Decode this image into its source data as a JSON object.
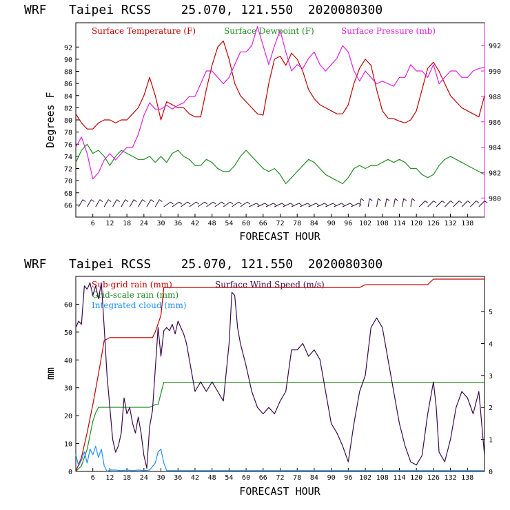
{
  "colors": {
    "temperature": "#c00000",
    "dewpoint": "#228b22",
    "pressure": "#e020e0",
    "subgrid_rain": "#c00000",
    "gridscale_rain": "#228b22",
    "cloud": "#1e90ff",
    "wind": "#3a0a4a",
    "barbs": "#2a0a3a"
  },
  "top_panel": {
    "title": "WRF   Taipei RCSS    25.070, 121.550  2020080300",
    "legend": [
      "Surface Temperature (F)",
      "Surface Dewpoint (F)",
      "Surface Pressure (mb)"
    ]
  },
  "bottom_panel": {
    "title": "WRF   Taipei RCSS    25.070, 121.550  2020080300",
    "legend": [
      "Sub-grid rain (mm)",
      "Grid-scale rain (mm)",
      "Integrated cloud (mm)",
      "Surface Wind Speed (m/s)"
    ]
  },
  "chart_data": [
    {
      "type": "line",
      "xlabel": "FORECAST HOUR",
      "ylabel": "Degrees F",
      "xlim": [
        0,
        144
      ],
      "ylim": [
        64,
        96
      ],
      "y2lim": [
        978.5,
        993.8
      ],
      "xticks": [
        "6",
        "12",
        "18",
        "24",
        "30",
        "36",
        "42",
        "48",
        "54",
        "60",
        "66",
        "72",
        "78",
        "84",
        "90",
        "96",
        "102",
        "108",
        "114",
        "120",
        "126",
        "132",
        "138"
      ],
      "yticks": [
        "66",
        "68",
        "70",
        "72",
        "74",
        "76",
        "78",
        "80",
        "82",
        "84",
        "86",
        "88",
        "90",
        "92"
      ],
      "y2ticks": [
        "980",
        "982",
        "984",
        "986",
        "988",
        "990",
        "992"
      ],
      "series": [
        {
          "name": "Surface Temperature (F)",
          "axis": "left",
          "x": [
            0,
            2,
            4,
            6,
            8,
            10,
            12,
            14,
            16,
            18,
            20,
            22,
            24,
            26,
            28,
            30,
            32,
            34,
            36,
            38,
            40,
            42,
            44,
            46,
            48,
            50,
            52,
            54,
            56,
            58,
            60,
            62,
            64,
            66,
            68,
            70,
            72,
            74,
            76,
            78,
            80,
            82,
            84,
            86,
            88,
            90,
            92,
            94,
            96,
            98,
            100,
            102,
            104,
            106,
            108,
            110,
            112,
            114,
            116,
            118,
            120,
            122,
            124,
            126,
            128,
            130,
            132,
            134,
            136,
            138,
            140,
            142,
            144
          ],
          "y": [
            81,
            79.5,
            78.5,
            78.5,
            79.5,
            80,
            80,
            79.5,
            80,
            80,
            81,
            82,
            84,
            87,
            84,
            80,
            83,
            82.5,
            82,
            82,
            81,
            80.5,
            80.5,
            85,
            89,
            92,
            93,
            90,
            86,
            84,
            83,
            82,
            81,
            80.8,
            86,
            90,
            90.5,
            89,
            91,
            90,
            88,
            85,
            83.5,
            82.5,
            82,
            81.5,
            81,
            81,
            82.5,
            86,
            88.5,
            90,
            89,
            85,
            81.5,
            80.3,
            80.2,
            79.8,
            79.5,
            80,
            81.5,
            85,
            88.5,
            89.5,
            88,
            86,
            84,
            83,
            82,
            81.5,
            81,
            80.5,
            84
          ]
        },
        {
          "name": "Surface Dewpoint (F)",
          "axis": "left",
          "x": [
            0,
            2,
            4,
            6,
            8,
            10,
            12,
            14,
            16,
            18,
            20,
            22,
            24,
            26,
            28,
            30,
            32,
            34,
            36,
            38,
            40,
            42,
            44,
            46,
            48,
            50,
            52,
            54,
            56,
            58,
            60,
            62,
            64,
            66,
            68,
            70,
            72,
            74,
            76,
            78,
            80,
            82,
            84,
            86,
            88,
            90,
            92,
            94,
            96,
            98,
            100,
            102,
            104,
            106,
            108,
            110,
            112,
            114,
            116,
            118,
            120,
            122,
            124,
            126,
            128,
            130,
            132,
            134,
            136,
            138,
            140,
            142,
            144
          ],
          "y": [
            73,
            75,
            76,
            74.5,
            75,
            74,
            72.5,
            74,
            75,
            74.5,
            74,
            73.5,
            73.5,
            74,
            73,
            74,
            73,
            74.5,
            75,
            74,
            73.5,
            72.5,
            72.5,
            73.5,
            73,
            72,
            71.5,
            71.5,
            72.5,
            74,
            75,
            74,
            73,
            72,
            71.5,
            72,
            71,
            69.5,
            70.5,
            71.5,
            72.5,
            73.5,
            73,
            72,
            71,
            70.5,
            70,
            69.5,
            70.5,
            72,
            72.5,
            72,
            72.5,
            72.5,
            73,
            73.5,
            73,
            73.5,
            73,
            72,
            72,
            71,
            70.5,
            71,
            72.5,
            73.5,
            74,
            73.5,
            73,
            72.5,
            72,
            71.5,
            71
          ]
        },
        {
          "name": "Surface Pressure (mb)",
          "axis": "right",
          "x": [
            0,
            2,
            4,
            6,
            8,
            10,
            12,
            14,
            16,
            18,
            20,
            22,
            24,
            26,
            28,
            30,
            32,
            34,
            36,
            38,
            40,
            42,
            44,
            46,
            48,
            50,
            52,
            54,
            56,
            58,
            60,
            62,
            64,
            66,
            68,
            70,
            72,
            74,
            76,
            78,
            80,
            82,
            84,
            86,
            88,
            90,
            92,
            94,
            96,
            98,
            100,
            102,
            104,
            106,
            108,
            110,
            112,
            114,
            116,
            118,
            120,
            122,
            124,
            126,
            128,
            130,
            132,
            134,
            136,
            138,
            140,
            142,
            144
          ],
          "y": [
            984,
            984.8,
            983.5,
            981.5,
            982,
            983,
            983.5,
            983,
            983.5,
            984,
            984,
            985,
            986.5,
            987.5,
            987,
            987,
            987.3,
            987,
            987.3,
            987.5,
            988,
            988,
            989,
            990,
            990,
            989.5,
            989,
            989.5,
            990.5,
            991.5,
            991.5,
            992,
            993.5,
            992,
            990.5,
            992,
            993.2,
            991.5,
            990,
            990.5,
            990.2,
            991,
            991.5,
            990.5,
            990,
            990.5,
            991,
            992,
            991.5,
            990,
            989.2,
            990,
            989.5,
            989,
            989.2,
            989,
            988.8,
            989.5,
            989.5,
            990.5,
            990,
            990,
            989.5,
            990.5,
            989,
            989.5,
            990,
            990,
            989.5,
            989.5,
            990,
            990.2,
            990.3
          ]
        }
      ]
    },
    {
      "type": "line",
      "xlabel": "FORECAST HOUR",
      "ylabel": "mm",
      "xlim": [
        0,
        144
      ],
      "ylim": [
        0,
        70
      ],
      "y2lim": [
        0,
        6.1
      ],
      "xticks": [
        "6",
        "12",
        "18",
        "24",
        "30",
        "36",
        "42",
        "48",
        "54",
        "60",
        "66",
        "72",
        "78",
        "84",
        "90",
        "96",
        "102",
        "108",
        "114",
        "120",
        "126",
        "132",
        "138"
      ],
      "yticks": [
        "0",
        "10",
        "20",
        "30",
        "40",
        "50",
        "60"
      ],
      "y2ticks": [
        "0",
        "1",
        "2",
        "3",
        "4",
        "5"
      ],
      "series": [
        {
          "name": "Sub-grid rain (mm)",
          "axis": "left",
          "x": [
            0,
            2,
            4,
            6,
            8,
            9,
            10,
            12,
            14,
            16,
            18,
            20,
            22,
            24,
            26,
            27,
            28,
            30,
            31,
            32,
            40,
            50,
            60,
            70,
            80,
            90,
            100,
            102,
            104,
            110,
            120,
            124,
            126,
            128,
            130,
            136,
            140,
            144
          ],
          "y": [
            0,
            5,
            14,
            24,
            35,
            41,
            47,
            48,
            48,
            48,
            48,
            48,
            48,
            48,
            48,
            48,
            50,
            56,
            66,
            66,
            66,
            66,
            66,
            66,
            66,
            66,
            66,
            67,
            67,
            67,
            67,
            67,
            69,
            69,
            69,
            69,
            69,
            69
          ]
        },
        {
          "name": "Grid-scale rain (mm)",
          "axis": "left",
          "x": [
            0,
            2,
            4,
            5,
            6,
            7,
            8,
            9,
            10,
            12,
            14,
            16,
            18,
            20,
            22,
            24,
            26,
            28,
            29,
            30,
            31,
            32,
            40,
            60,
            80,
            100,
            120,
            144
          ],
          "y": [
            0,
            2,
            8,
            13,
            18,
            21,
            23,
            23,
            23,
            23,
            23,
            23,
            23,
            23,
            23,
            23,
            23,
            24,
            24,
            28,
            32,
            32,
            32,
            32,
            32,
            32,
            32,
            32
          ]
        },
        {
          "name": "Integrated cloud (mm)",
          "axis": "left",
          "x": [
            0,
            1,
            2,
            3,
            4,
            5,
            6,
            7,
            8,
            9,
            10,
            11,
            12,
            14,
            16,
            18,
            20,
            22,
            24,
            26,
            28,
            29,
            30,
            31,
            32,
            34,
            40,
            60,
            80,
            100,
            120,
            144
          ],
          "y": [
            6,
            2,
            4,
            7,
            3,
            8,
            6,
            9,
            5,
            8,
            2,
            0,
            0.5,
            0.5,
            0.3,
            0.5,
            0.3,
            0.5,
            0.3,
            0.5,
            3,
            7,
            8,
            3,
            0.3,
            0.3,
            0.3,
            0.3,
            0.3,
            0.3,
            0.3,
            0.3
          ]
        },
        {
          "name": "Surface Wind Speed (m/s)",
          "axis": "right",
          "x": [
            0,
            1,
            2,
            3,
            4,
            5,
            6,
            7,
            8,
            9,
            10,
            11,
            12,
            13,
            14,
            15,
            16,
            17,
            18,
            19,
            20,
            21,
            22,
            23,
            24,
            25,
            26,
            27,
            28,
            29,
            30,
            31,
            32,
            33,
            34,
            35,
            36,
            37,
            38,
            39,
            40,
            42,
            44,
            46,
            48,
            50,
            52,
            54,
            55,
            56,
            57,
            58,
            60,
            62,
            64,
            66,
            68,
            70,
            72,
            74,
            76,
            78,
            80,
            82,
            84,
            86,
            88,
            90,
            92,
            94,
            96,
            98,
            100,
            102,
            104,
            106,
            108,
            110,
            112,
            114,
            116,
            118,
            120,
            122,
            124,
            126,
            127,
            128,
            130,
            132,
            134,
            136,
            138,
            140,
            142,
            144
          ],
          "y": [
            4.5,
            4.7,
            4.6,
            5.8,
            5.7,
            5.9,
            5.5,
            5.8,
            5.4,
            5.9,
            4.5,
            3,
            2,
            1,
            0.6,
            0.8,
            1.2,
            2.3,
            1.8,
            2,
            1.5,
            1.2,
            1.7,
            1.2,
            0.5,
            0.1,
            1.4,
            1.9,
            3.2,
            4.5,
            3.6,
            4.4,
            4.5,
            4.4,
            4.6,
            4.3,
            4.7,
            4.5,
            4.3,
            4.0,
            3.5,
            2.5,
            2.8,
            2.5,
            2.8,
            2.5,
            2.2,
            4.0,
            5.6,
            5.5,
            4.5,
            4.0,
            3.3,
            2.5,
            2.0,
            1.8,
            2.0,
            1.8,
            2.2,
            2.5,
            3.8,
            3.8,
            4.0,
            3.6,
            3.8,
            3.5,
            2.5,
            1.5,
            1.2,
            0.8,
            0.3,
            1.5,
            2.5,
            3.0,
            4.5,
            4.8,
            4.5,
            3.5,
            2.5,
            1.5,
            0.8,
            0.3,
            0.2,
            0.5,
            1.8,
            2.8,
            2.0,
            0.6,
            0.3,
            1.0,
            2.0,
            2.5,
            2.3,
            1.8,
            2.5,
            0.5
          ]
        }
      ]
    }
  ]
}
